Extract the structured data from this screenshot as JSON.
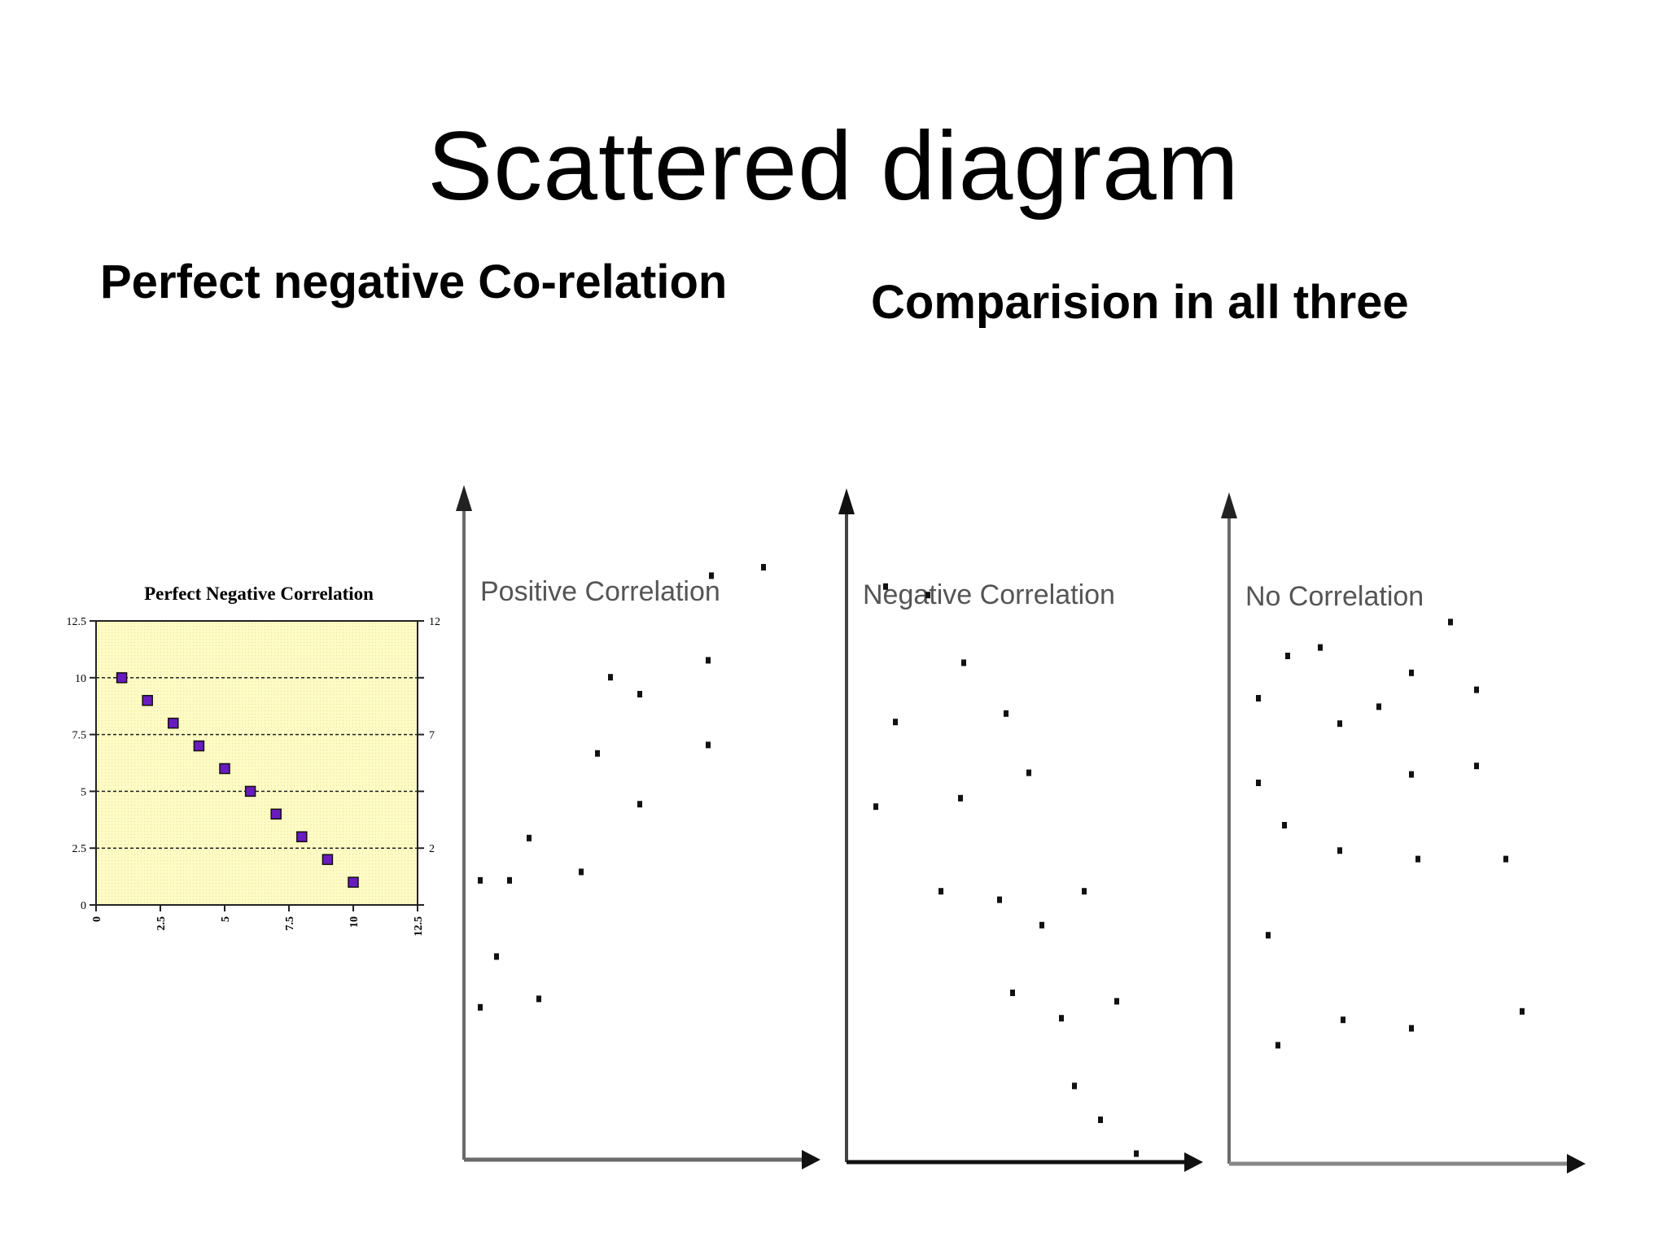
{
  "slide": {
    "title": "Scattered diagram",
    "left_heading": "Perfect negative Co-relation",
    "right_heading": "Comparision in all three"
  },
  "colors": {
    "plot_background": "#fefbc4",
    "marker_fill": "#6a1bbf",
    "marker_stroke": "#111111",
    "axis": "#111111",
    "gray_axis": "#6b6b6b"
  },
  "chart_data": [
    {
      "type": "scatter",
      "title": "Perfect Negative Correlation",
      "xlim": [
        0,
        12.5
      ],
      "ylim": [
        0,
        12.5
      ],
      "x_ticks": [
        "0",
        "2.5",
        "5",
        "7.5",
        "10",
        "12.5"
      ],
      "y_ticks": [
        "0",
        "2.5",
        "5",
        "7.5",
        "10",
        "12.5"
      ],
      "right_ticks": [
        "",
        "2",
        "",
        "7",
        "",
        "12"
      ],
      "grid": true,
      "x": [
        1,
        2,
        3,
        4,
        5,
        6,
        7,
        8,
        9,
        10
      ],
      "y": [
        10,
        9,
        8,
        7,
        6,
        5,
        4,
        3,
        2,
        1
      ]
    },
    {
      "type": "scatter",
      "title": "Positive Correlation",
      "xlim": [
        0,
        10
      ],
      "ylim": [
        0,
        10
      ],
      "x": [
        0.5,
        0.5,
        1.0,
        1.4,
        2.0,
        2.3,
        3.6,
        4.1,
        4.5,
        5.4,
        5.4,
        7.5,
        7.5,
        7.6,
        9.2
      ],
      "y": [
        1.8,
        3.3,
        2.4,
        3.3,
        3.8,
        1.9,
        3.4,
        4.8,
        5.7,
        4.2,
        5.5,
        4.9,
        5.9,
        6.9,
        7.0
      ]
    },
    {
      "type": "scatter",
      "title": "Negative Correlation",
      "xlim": [
        0,
        10
      ],
      "ylim": [
        0,
        10
      ],
      "x": [
        0.9,
        1.2,
        1.5,
        2.5,
        2.9,
        3.5,
        3.6,
        4.7,
        4.9,
        5.1,
        5.6,
        6.0,
        6.6,
        7.0,
        7.3,
        7.8,
        8.3,
        8.9
      ],
      "y": [
        4.2,
        6.8,
        5.2,
        6.7,
        3.2,
        4.3,
        5.9,
        3.1,
        5.3,
        2.0,
        4.6,
        2.8,
        1.7,
        0.9,
        3.2,
        0.5,
        1.9,
        0.1
      ]
    },
    {
      "type": "scatter",
      "title": "No Correlation",
      "xlim": [
        0,
        10
      ],
      "ylim": [
        0,
        10
      ],
      "x": [
        0.9,
        0.9,
        1.2,
        1.5,
        1.7,
        1.8,
        2.8,
        3.4,
        3.4,
        3.5,
        4.6,
        5.6,
        5.6,
        5.6,
        5.8,
        6.8,
        7.6,
        7.6,
        8.5,
        9.0
      ],
      "y": [
        4.5,
        5.5,
        2.7,
        1.4,
        4.0,
        6.0,
        6.1,
        5.2,
        3.7,
        1.7,
        5.4,
        5.8,
        4.6,
        1.6,
        3.6,
        6.4,
        5.6,
        4.7,
        3.6,
        1.8
      ]
    }
  ]
}
